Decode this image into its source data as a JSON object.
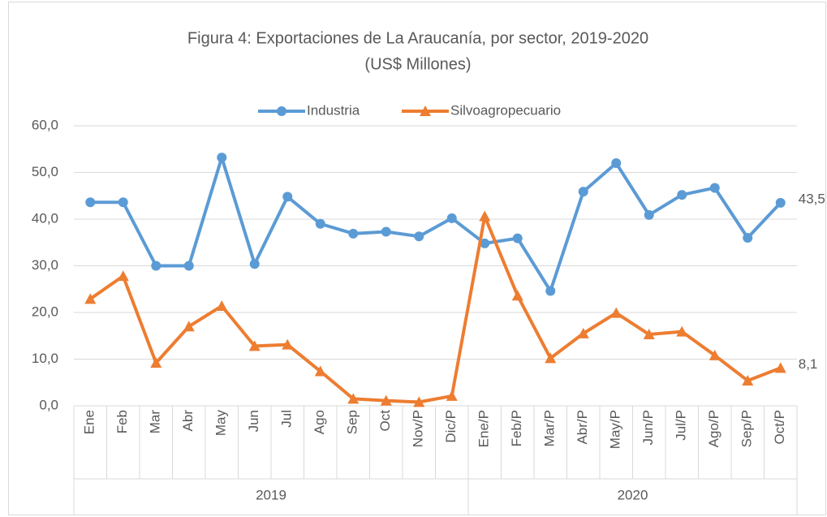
{
  "chart_data": {
    "type": "line",
    "title": "Figura 4: Exportaciones de La Araucanía, por sector, 2019-2020",
    "subtitle": "(US$ Millones)",
    "categories": [
      "Ene",
      "Feb",
      "Mar",
      "Abr",
      "May",
      "Jun",
      "Jul",
      "Ago",
      "Sep",
      "Oct",
      "Nov/P",
      "Dic/P",
      "Ene/P",
      "Feb/P",
      "Mar/P",
      "Abr/P",
      "May/P",
      "Jun/P",
      "Jul/P",
      "Ago/P",
      "Sep/P",
      "Oct/P"
    ],
    "groups": [
      {
        "label": "2019",
        "span": 12
      },
      {
        "label": "2020",
        "span": 10
      }
    ],
    "series": [
      {
        "name": "Industria",
        "color": "#5b9bd5",
        "marker": "circle",
        "values": [
          43.6,
          43.6,
          30.0,
          30.0,
          53.2,
          30.4,
          44.8,
          39.0,
          36.9,
          37.3,
          36.3,
          40.2,
          34.8,
          35.9,
          24.6,
          45.9,
          52.0,
          40.9,
          45.2,
          46.7,
          36.0,
          43.5
        ],
        "value_labels": [
          null,
          null,
          null,
          null,
          null,
          null,
          null,
          null,
          null,
          null,
          null,
          null,
          null,
          null,
          null,
          null,
          null,
          null,
          null,
          null,
          null,
          "43,5"
        ]
      },
      {
        "name": "Silvoagropecuario",
        "color": "#ed7d31",
        "marker": "triangle",
        "values": [
          22.9,
          27.8,
          9.2,
          17.0,
          21.4,
          12.8,
          13.1,
          7.4,
          1.5,
          1.1,
          0.8,
          2.1,
          40.6,
          23.6,
          10.2,
          15.5,
          19.9,
          15.3,
          15.9,
          10.8,
          5.4,
          8.1
        ],
        "value_labels": [
          null,
          null,
          null,
          null,
          null,
          null,
          null,
          null,
          null,
          null,
          null,
          null,
          null,
          null,
          null,
          null,
          null,
          null,
          null,
          null,
          null,
          "8,1"
        ]
      }
    ],
    "ylim": [
      0,
      60
    ],
    "yticks": [
      {
        "value": 0,
        "label": "0,0"
      },
      {
        "value": 10,
        "label": "10,0"
      },
      {
        "value": 20,
        "label": "20,0"
      },
      {
        "value": 30,
        "label": "30,0"
      },
      {
        "value": 40,
        "label": "40,0"
      },
      {
        "value": 50,
        "label": "50,0"
      },
      {
        "value": 60,
        "label": "60,0"
      }
    ],
    "grid": true,
    "legend": "top"
  }
}
